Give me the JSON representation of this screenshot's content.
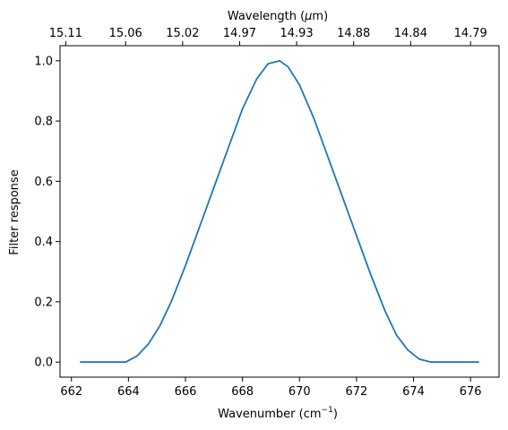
{
  "chart_data": {
    "type": "line",
    "xlabel_main": "Wavenumber (cm",
    "xlabel_sup": "−1",
    "xlabel_end": ")",
    "ylabel": "Filter response",
    "top_xlabel_pre": "Wavelength (",
    "top_xlabel_mu": "μ",
    "top_xlabel_post": "m)",
    "xlim": [
      661.6,
      677.0
    ],
    "ylim": [
      -0.05,
      1.05
    ],
    "grid": false,
    "legend": "none",
    "x_ticks": [
      662,
      664,
      666,
      668,
      670,
      672,
      674,
      676
    ],
    "y_ticks": [
      0.0,
      0.2,
      0.4,
      0.6,
      0.8,
      1.0
    ],
    "y_tick_labels": [
      "0.0",
      "0.2",
      "0.4",
      "0.6",
      "0.8",
      "1.0"
    ],
    "top_ticks": [
      {
        "wavenumber": 661.8,
        "label": "15.11"
      },
      {
        "wavenumber": 663.9,
        "label": "15.06"
      },
      {
        "wavenumber": 665.9,
        "label": "15.02"
      },
      {
        "wavenumber": 667.9,
        "label": "14.97"
      },
      {
        "wavenumber": 669.9,
        "label": "14.93"
      },
      {
        "wavenumber": 671.9,
        "label": "14.88"
      },
      {
        "wavenumber": 673.9,
        "label": "14.84"
      },
      {
        "wavenumber": 676.0,
        "label": "14.79"
      }
    ],
    "series": [
      {
        "color": "#1f77b4",
        "x": [
          662.3,
          663.0,
          663.9,
          664.3,
          664.7,
          665.1,
          665.5,
          666.0,
          666.5,
          667.0,
          667.5,
          668.0,
          668.5,
          668.9,
          669.3,
          669.6,
          670.0,
          670.5,
          671.0,
          671.5,
          672.0,
          672.5,
          673.0,
          673.4,
          673.8,
          674.2,
          674.6,
          674.8,
          675.3,
          676.3
        ],
        "y": [
          0.0,
          0.0,
          0.0,
          0.02,
          0.06,
          0.12,
          0.2,
          0.32,
          0.45,
          0.58,
          0.71,
          0.84,
          0.94,
          0.99,
          1.0,
          0.98,
          0.92,
          0.81,
          0.68,
          0.55,
          0.42,
          0.29,
          0.17,
          0.09,
          0.04,
          0.01,
          0.0,
          0.0,
          0.0,
          0.0
        ]
      }
    ]
  }
}
